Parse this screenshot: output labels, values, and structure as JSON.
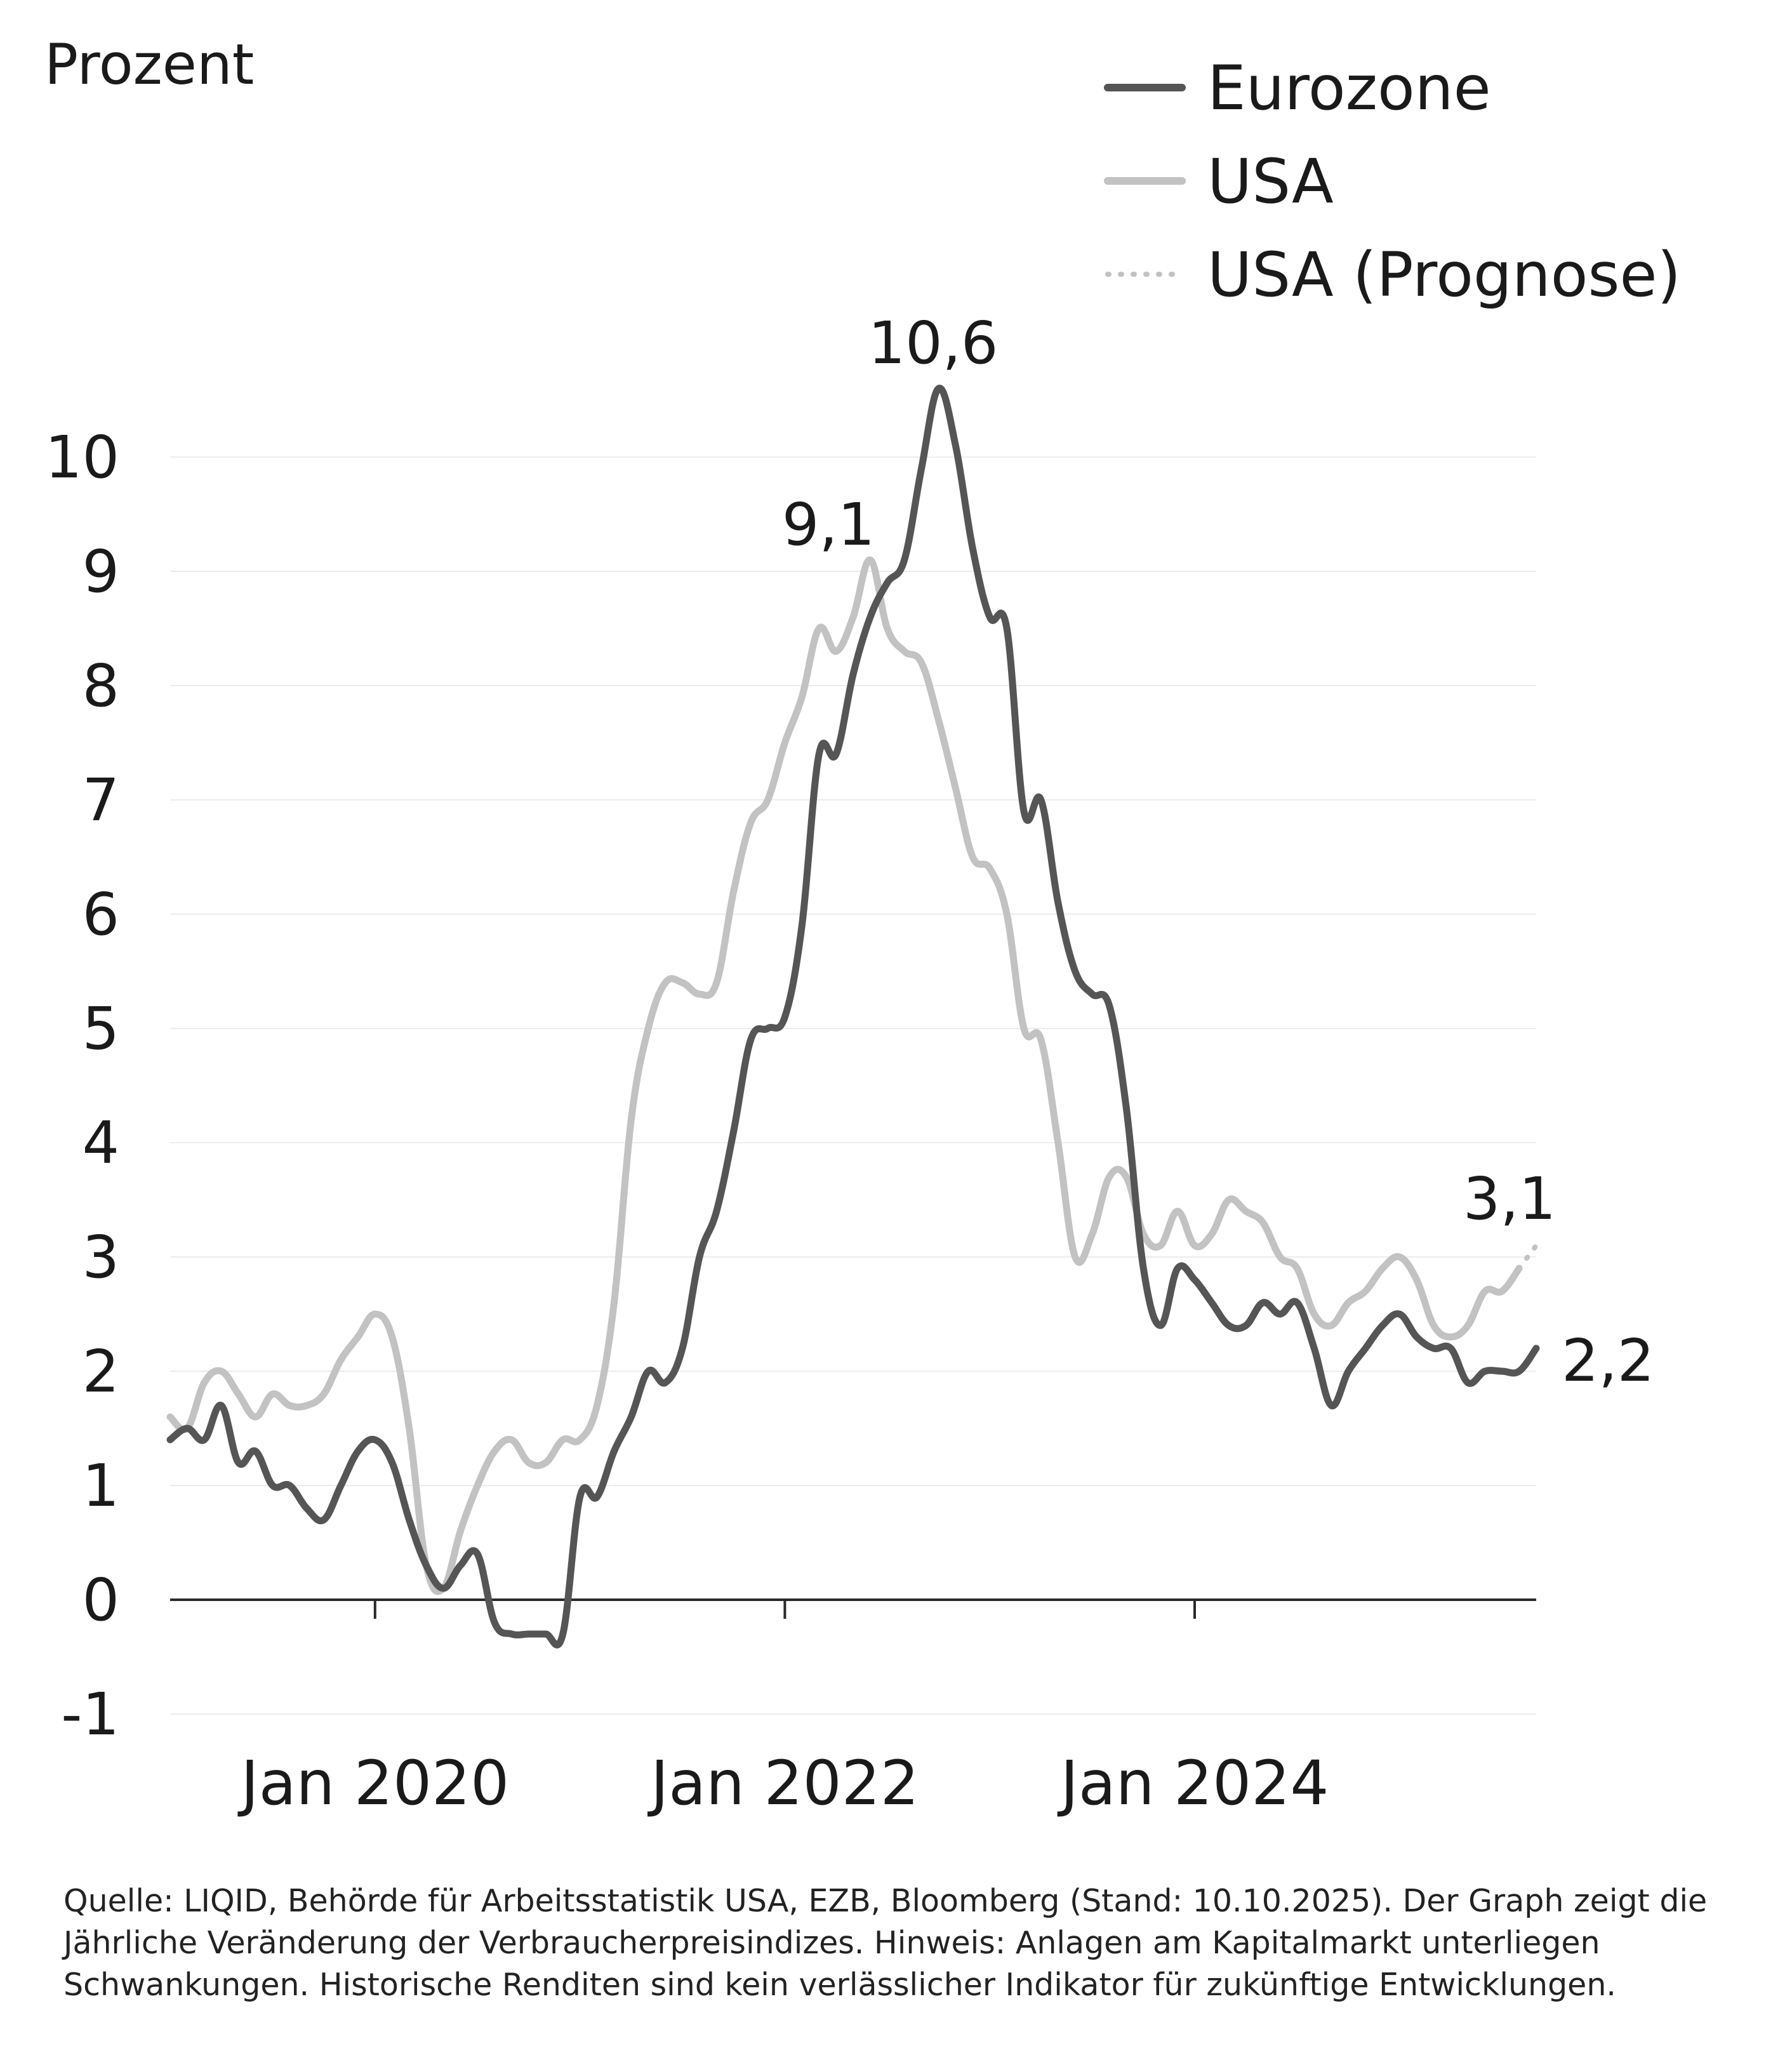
{
  "chart_data": {
    "type": "line",
    "ylabel": "Prozent",
    "ylim": [
      -1,
      10.6
    ],
    "yticks": [
      "-1",
      "0",
      "1",
      "2",
      "3",
      "4",
      "5",
      "6",
      "7",
      "8",
      "9",
      "10"
    ],
    "xticks": [
      "Jan 2020",
      "Jan 2022",
      "Jan 2024"
    ],
    "grid": true,
    "legend_position": "top-right",
    "legend": [
      "Eurozone",
      "USA",
      "USA (Prognose)"
    ],
    "annotations": [
      "10,6",
      "9,1",
      "3,1",
      "2,2"
    ],
    "colors": {
      "eurozone": "#555555",
      "usa": "#c2c2c2",
      "forecast": "#c2c2c2"
    },
    "series": [
      {
        "name": "Eurozone",
        "x": [
          "2019-01",
          "2019-02",
          "2019-03",
          "2019-04",
          "2019-05",
          "2019-06",
          "2019-07",
          "2019-08",
          "2019-09",
          "2019-10",
          "2019-11",
          "2019-12",
          "2020-01",
          "2020-02",
          "2020-03",
          "2020-04",
          "2020-05",
          "2020-06",
          "2020-07",
          "2020-08",
          "2020-09",
          "2020-10",
          "2020-11",
          "2020-12",
          "2021-01",
          "2021-02",
          "2021-03",
          "2021-04",
          "2021-05",
          "2021-06",
          "2021-07",
          "2021-08",
          "2021-09",
          "2021-10",
          "2021-11",
          "2021-12",
          "2022-01",
          "2022-02",
          "2022-03",
          "2022-04",
          "2022-05",
          "2022-06",
          "2022-07",
          "2022-08",
          "2022-09",
          "2022-10",
          "2022-11",
          "2022-12",
          "2023-01",
          "2023-02",
          "2023-03",
          "2023-04",
          "2023-05",
          "2023-06",
          "2023-07",
          "2023-08",
          "2023-09",
          "2023-10",
          "2023-11",
          "2023-12",
          "2024-01",
          "2024-02",
          "2024-03",
          "2024-04",
          "2024-05",
          "2024-06",
          "2024-07",
          "2024-08",
          "2024-09",
          "2024-10",
          "2024-11",
          "2024-12",
          "2025-01",
          "2025-02",
          "2025-03",
          "2025-04",
          "2025-05",
          "2025-06",
          "2025-07",
          "2025-08",
          "2025-09"
        ],
        "values": [
          1.4,
          1.5,
          1.4,
          1.7,
          1.2,
          1.3,
          1.0,
          1.0,
          0.8,
          0.7,
          1.0,
          1.3,
          1.4,
          1.2,
          0.7,
          0.3,
          0.1,
          0.3,
          0.4,
          -0.2,
          -0.3,
          -0.3,
          -0.3,
          -0.3,
          0.9,
          0.9,
          1.3,
          1.6,
          2.0,
          1.9,
          2.2,
          3.0,
          3.4,
          4.1,
          4.9,
          5.0,
          5.1,
          5.9,
          7.4,
          7.4,
          8.1,
          8.6,
          8.9,
          9.1,
          9.9,
          10.6,
          10.1,
          9.2,
          8.6,
          8.5,
          6.9,
          7.0,
          6.1,
          5.5,
          5.3,
          5.2,
          4.3,
          2.9,
          2.4,
          2.9,
          2.8,
          2.6,
          2.4,
          2.4,
          2.6,
          2.5,
          2.6,
          2.2,
          1.7,
          2.0,
          2.2,
          2.4,
          2.5,
          2.3,
          2.2,
          2.2,
          1.9,
          2.0,
          2.0,
          2.0,
          2.2
        ]
      },
      {
        "name": "USA",
        "x": [
          "2019-01",
          "2019-02",
          "2019-03",
          "2019-04",
          "2019-05",
          "2019-06",
          "2019-07",
          "2019-08",
          "2019-09",
          "2019-10",
          "2019-11",
          "2019-12",
          "2020-01",
          "2020-02",
          "2020-03",
          "2020-04",
          "2020-05",
          "2020-06",
          "2020-07",
          "2020-08",
          "2020-09",
          "2020-10",
          "2020-11",
          "2020-12",
          "2021-01",
          "2021-02",
          "2021-03",
          "2021-04",
          "2021-05",
          "2021-06",
          "2021-07",
          "2021-08",
          "2021-09",
          "2021-10",
          "2021-11",
          "2021-12",
          "2022-01",
          "2022-02",
          "2022-03",
          "2022-04",
          "2022-05",
          "2022-06",
          "2022-07",
          "2022-08",
          "2022-09",
          "2022-10",
          "2022-11",
          "2022-12",
          "2023-01",
          "2023-02",
          "2023-03",
          "2023-04",
          "2023-05",
          "2023-06",
          "2023-07",
          "2023-08",
          "2023-09",
          "2023-10",
          "2023-11",
          "2023-12",
          "2024-01",
          "2024-02",
          "2024-03",
          "2024-04",
          "2024-05",
          "2024-06",
          "2024-07",
          "2024-08",
          "2024-09",
          "2024-10",
          "2024-11",
          "2024-12",
          "2025-01",
          "2025-02",
          "2025-03",
          "2025-04",
          "2025-05",
          "2025-06",
          "2025-07",
          "2025-08"
        ],
        "values": [
          1.6,
          1.5,
          1.9,
          2.0,
          1.8,
          1.6,
          1.8,
          1.7,
          1.7,
          1.8,
          2.1,
          2.3,
          2.5,
          2.3,
          1.5,
          0.3,
          0.1,
          0.6,
          1.0,
          1.3,
          1.4,
          1.2,
          1.2,
          1.4,
          1.4,
          1.7,
          2.6,
          4.2,
          5.0,
          5.4,
          5.4,
          5.3,
          5.4,
          6.2,
          6.8,
          7.0,
          7.5,
          7.9,
          8.5,
          8.3,
          8.6,
          9.1,
          8.5,
          8.3,
          8.2,
          7.7,
          7.1,
          6.5,
          6.4,
          6.0,
          5.0,
          4.9,
          4.0,
          3.0,
          3.2,
          3.7,
          3.7,
          3.2,
          3.1,
          3.4,
          3.1,
          3.2,
          3.5,
          3.4,
          3.3,
          3.0,
          2.9,
          2.5,
          2.4,
          2.6,
          2.7,
          2.9,
          3.0,
          2.8,
          2.4,
          2.3,
          2.4,
          2.7,
          2.7,
          2.9
        ]
      },
      {
        "name": "USA (Prognose)",
        "x": [
          "2025-08",
          "2025-09"
        ],
        "values": [
          2.9,
          3.1
        ]
      }
    ]
  },
  "footer": {
    "source": "Quelle: LIQID, Behörde für Arbeitsstatistik USA, EZB, Bloomberg (Stand: 10.10.2025). Der Graph zeigt die Jährliche Veränderung der Verbraucherpreisindizes. Hinweis: Anlagen am Kapitalmarkt unterliegen Schwankungen. Historische Renditen sind kein verlässlicher Indikator für zukünftige Entwicklungen."
  }
}
